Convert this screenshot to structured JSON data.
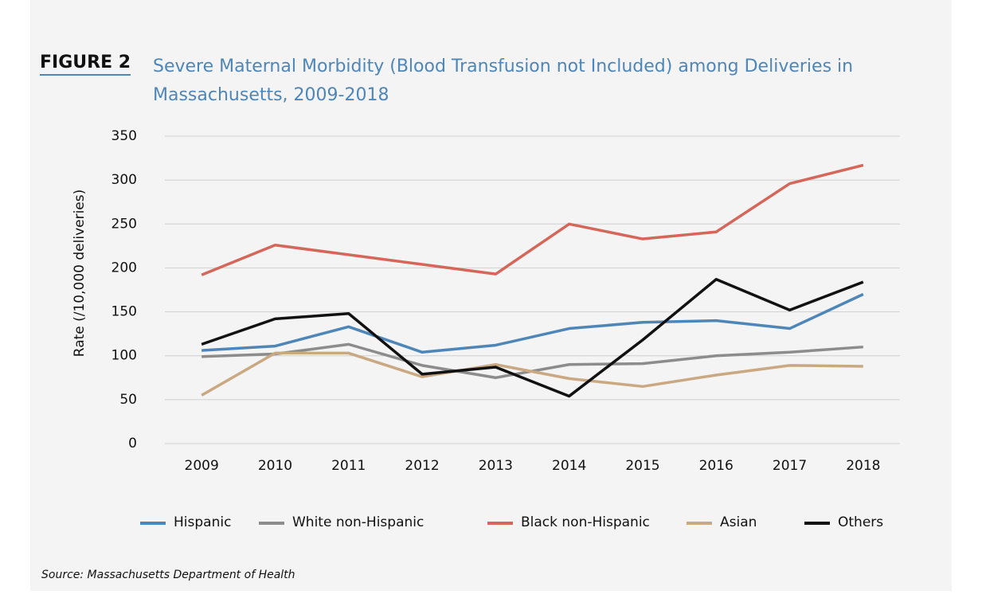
{
  "chart_data": {
    "type": "line",
    "figure_label": "FIGURE 2",
    "title": "Severe Maternal Morbidity (Blood Transfusion not Included) among Deliveries in Massachusetts, 2009-2018",
    "y_label": "Rate (/10,000 deliveries)",
    "source": "Source:  Massachusetts Department of Health",
    "categories": [
      "2009",
      "2010",
      "2011",
      "2012",
      "2013",
      "2014",
      "2015",
      "2016",
      "2017",
      "2018"
    ],
    "series": [
      {
        "name": "Hispanic",
        "color": "#4e86b8",
        "values": [
          106,
          111,
          133,
          104,
          112,
          131,
          138,
          140,
          131,
          170
        ]
      },
      {
        "name": "White non-Hispanic",
        "color": "#8c8c8c",
        "values": [
          99,
          102,
          113,
          89,
          75,
          90,
          91,
          100,
          104,
          110
        ]
      },
      {
        "name": "Black non-Hispanic",
        "color": "#d4665a",
        "values": [
          192,
          226,
          215,
          204,
          193,
          250,
          233,
          241,
          296,
          317
        ]
      },
      {
        "name": "Asian",
        "color": "#c9a882",
        "values": [
          55,
          103,
          103,
          76,
          90,
          74,
          65,
          78,
          89,
          88
        ]
      },
      {
        "name": "Others",
        "color": "#111111",
        "values": [
          113,
          142,
          148,
          79,
          87,
          54,
          118,
          187,
          152,
          184
        ]
      }
    ],
    "ylim": [
      0,
      350
    ],
    "yticks": [
      0,
      50,
      100,
      150,
      200,
      250,
      300,
      350
    ],
    "grid": true
  }
}
